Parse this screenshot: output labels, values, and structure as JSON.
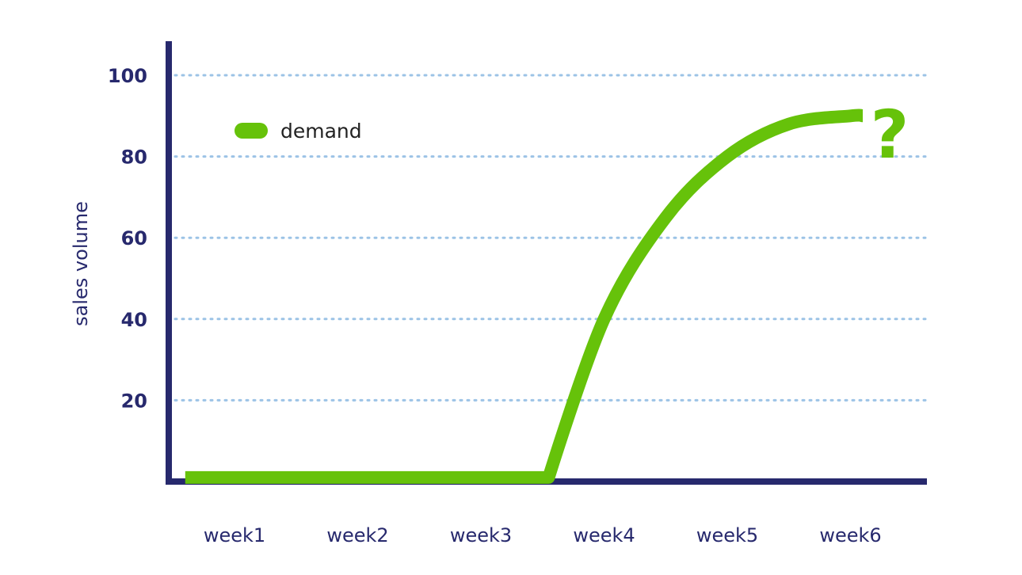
{
  "chart_data": {
    "type": "line",
    "ylabel": "sales volume",
    "xlabel": "",
    "categories": [
      "week1",
      "week2",
      "week3",
      "week4",
      "week5",
      "week6"
    ],
    "y_ticks": [
      "20",
      "40",
      "60",
      "80",
      "100"
    ],
    "ylim": [
      0,
      110
    ],
    "grid": "horizontal dotted",
    "legend_position": "top-left",
    "series": [
      {
        "name": "demand",
        "color": "#66c20a",
        "points": [
          {
            "x": 0.6,
            "y": 1
          },
          {
            "x": 1,
            "y": 1
          },
          {
            "x": 2,
            "y": 1
          },
          {
            "x": 3,
            "y": 1
          },
          {
            "x": 3.55,
            "y": 1
          },
          {
            "x": 4,
            "y": 40
          },
          {
            "x": 4.5,
            "y": 65
          },
          {
            "x": 5,
            "y": 80
          },
          {
            "x": 5.5,
            "y": 88
          },
          {
            "x": 6,
            "y": 90
          },
          {
            "x": 6.1,
            "y": 90
          }
        ]
      }
    ],
    "annotation": "?",
    "colors": {
      "axis": "#27296d",
      "grid": "#9cc3e6",
      "line": "#66c20a"
    }
  }
}
